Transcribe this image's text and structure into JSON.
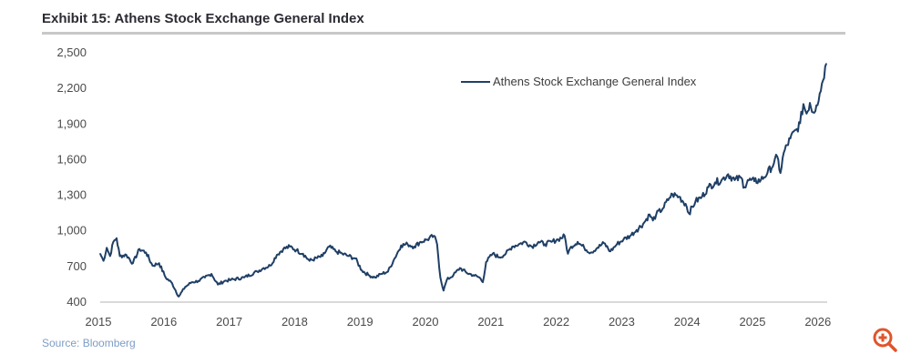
{
  "header": {
    "title": "Exhibit 15: Athens Stock Exchange General Index"
  },
  "footer": {
    "source": "Source: Bloomberg"
  },
  "colors": {
    "series": "#1f3f66",
    "axis": "#d9d9d9",
    "accent": "#e0552a"
  },
  "zoom_icon": "zoom-in-icon",
  "chart_data": {
    "type": "line",
    "title": "Exhibit 15: Athens Stock Exchange General Index",
    "xlabel": "",
    "ylabel": "",
    "xlim": [
      2015,
      2026.1
    ],
    "ylim": [
      400,
      2500
    ],
    "x_ticks": [
      "2015",
      "2016",
      "2017",
      "2018",
      "2019",
      "2020",
      "2021",
      "2022",
      "2023",
      "2024",
      "2025",
      "2026"
    ],
    "x_tick_values": [
      2015,
      2016,
      2017,
      2018,
      2019,
      2020,
      2021,
      2022,
      2023,
      2024,
      2025,
      2026
    ],
    "y_ticks": [
      "2,500",
      "2,200",
      "1,900",
      "1,600",
      "1,300",
      "1,000",
      "700",
      "400"
    ],
    "y_tick_values": [
      2500,
      2200,
      1900,
      1600,
      1300,
      1000,
      700,
      400
    ],
    "grid": false,
    "legend": {
      "position": "top-right",
      "entries": [
        "Athens Stock Exchange General Index"
      ]
    },
    "series": [
      {
        "name": "Athens Stock Exchange General Index",
        "x": [
          2015.0,
          2015.05,
          2015.1,
          2015.15,
          2015.2,
          2015.25,
          2015.3,
          2015.4,
          2015.5,
          2015.6,
          2015.7,
          2015.8,
          2015.9,
          2016.0,
          2016.1,
          2016.2,
          2016.3,
          2016.4,
          2016.5,
          2016.6,
          2016.7,
          2016.8,
          2016.9,
          2017.0,
          2017.2,
          2017.4,
          2017.5,
          2017.6,
          2017.7,
          2017.8,
          2017.9,
          2018.0,
          2018.1,
          2018.2,
          2018.4,
          2018.5,
          2018.6,
          2018.7,
          2018.8,
          2018.9,
          2019.0,
          2019.1,
          2019.2,
          2019.3,
          2019.4,
          2019.5,
          2019.6,
          2019.7,
          2019.8,
          2019.9,
          2020.0,
          2020.1,
          2020.15,
          2020.2,
          2020.25,
          2020.3,
          2020.4,
          2020.5,
          2020.6,
          2020.7,
          2020.8,
          2020.85,
          2020.9,
          2021.0,
          2021.1,
          2021.2,
          2021.3,
          2021.4,
          2021.5,
          2021.6,
          2021.7,
          2021.8,
          2021.9,
          2022.0,
          2022.1,
          2022.15,
          2022.2,
          2022.3,
          2022.4,
          2022.5,
          2022.6,
          2022.7,
          2022.8,
          2022.9,
          2023.0,
          2023.1,
          2023.2,
          2023.3,
          2023.4,
          2023.45,
          2023.5,
          2023.6,
          2023.7,
          2023.75,
          2023.85,
          2023.95,
          2024.0,
          2024.1,
          2024.2,
          2024.3,
          2024.4,
          2024.5,
          2024.6,
          2024.7,
          2024.8,
          2024.85,
          2024.9,
          2025.0,
          2025.1,
          2025.2,
          2025.3,
          2025.35,
          2025.4,
          2025.45,
          2025.55,
          2025.65,
          2025.7,
          2025.75,
          2025.8,
          2025.85,
          2025.9,
          2025.95,
          2026.0,
          2026.1
        ],
        "values": [
          800,
          740,
          850,
          780,
          900,
          930,
          780,
          790,
          720,
          840,
          810,
          700,
          720,
          600,
          550,
          440,
          520,
          560,
          570,
          600,
          630,
          540,
          570,
          580,
          600,
          650,
          680,
          700,
          790,
          840,
          860,
          830,
          800,
          740,
          780,
          860,
          820,
          800,
          780,
          760,
          660,
          620,
          600,
          630,
          650,
          760,
          870,
          880,
          860,
          900,
          920,
          950,
          880,
          600,
          490,
          580,
          620,
          680,
          640,
          620,
          600,
          560,
          730,
          800,
          770,
          800,
          860,
          880,
          900,
          860,
          900,
          880,
          900,
          920,
          950,
          800,
          860,
          900,
          850,
          810,
          850,
          890,
          820,
          880,
          920,
          950,
          1000,
          1050,
          1130,
          1080,
          1130,
          1180,
          1270,
          1300,
          1280,
          1220,
          1140,
          1240,
          1280,
          1360,
          1400,
          1420,
          1470,
          1420,
          1440,
          1360,
          1420,
          1410,
          1420,
          1480,
          1560,
          1620,
          1480,
          1650,
          1770,
          1850,
          1900,
          2060,
          1980,
          2070,
          1990,
          2050,
          2150,
          2400
        ]
      }
    ]
  }
}
